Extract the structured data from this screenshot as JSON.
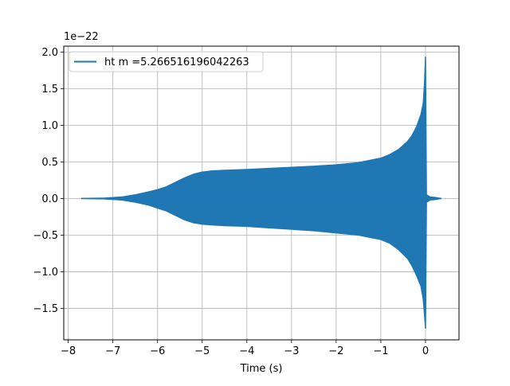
{
  "chart_data": {
    "type": "line",
    "title": "",
    "xlabel": "Time (s)",
    "ylabel": "",
    "xlim": [
      -8.1,
      0.75
    ],
    "ylim": [
      -1.93,
      2.08
    ],
    "xticks": [
      -8,
      -7,
      -6,
      -5,
      -4,
      -3,
      -2,
      -1,
      0
    ],
    "xtick_labels": [
      "−8",
      "−7",
      "−6",
      "−5",
      "−4",
      "−3",
      "−2",
      "−1",
      "0"
    ],
    "yticks": [
      -1.5,
      -1.0,
      -0.5,
      0.0,
      0.5,
      1.0,
      1.5,
      2.0
    ],
    "ytick_labels": [
      "−1.5",
      "−1.0",
      "−0.5",
      "0.0",
      "0.5",
      "1.0",
      "1.5",
      "2.0"
    ],
    "y_offset_text": "1e−22",
    "grid": true,
    "legend_position": "top-left",
    "series": [
      {
        "name": "ht m =5.266516196042263",
        "color": "#1f77b4",
        "upper_envelope": {
          "x": [
            -7.7,
            -7.2,
            -6.8,
            -6.5,
            -6.2,
            -6.0,
            -5.8,
            -5.6,
            -5.4,
            -5.2,
            -5.0,
            -4.8,
            -4.5,
            -4.0,
            -3.5,
            -3.0,
            -2.5,
            -2.0,
            -1.5,
            -1.0,
            -0.8,
            -0.6,
            -0.4,
            -0.3,
            -0.2,
            -0.1,
            -0.05,
            -0.02,
            0.0,
            0.02,
            0.05,
            0.1,
            0.2,
            0.35
          ],
          "y": [
            0.0,
            0.005,
            0.02,
            0.05,
            0.09,
            0.12,
            0.16,
            0.22,
            0.28,
            0.33,
            0.36,
            0.375,
            0.385,
            0.395,
            0.41,
            0.425,
            0.44,
            0.46,
            0.49,
            0.55,
            0.6,
            0.67,
            0.78,
            0.86,
            0.98,
            1.15,
            1.3,
            1.6,
            1.93,
            0.05,
            0.04,
            0.02,
            0.015,
            0.0
          ]
        },
        "lower_envelope": {
          "x": [
            -7.7,
            -7.2,
            -6.8,
            -6.5,
            -6.2,
            -6.0,
            -5.8,
            -5.6,
            -5.4,
            -5.2,
            -5.0,
            -4.8,
            -4.5,
            -4.0,
            -3.5,
            -3.0,
            -2.5,
            -2.0,
            -1.5,
            -1.0,
            -0.8,
            -0.6,
            -0.4,
            -0.3,
            -0.2,
            -0.1,
            -0.05,
            -0.02,
            0.0,
            0.02,
            0.05,
            0.1,
            0.2,
            0.35
          ],
          "y": [
            0.0,
            -0.005,
            -0.02,
            -0.05,
            -0.09,
            -0.13,
            -0.17,
            -0.23,
            -0.29,
            -0.33,
            -0.35,
            -0.36,
            -0.37,
            -0.38,
            -0.4,
            -0.42,
            -0.44,
            -0.47,
            -0.5,
            -0.56,
            -0.61,
            -0.7,
            -0.82,
            -0.92,
            -1.05,
            -1.2,
            -1.38,
            -1.6,
            -1.77,
            -0.05,
            -0.04,
            -0.02,
            -0.015,
            0.0
          ]
        }
      }
    ]
  }
}
